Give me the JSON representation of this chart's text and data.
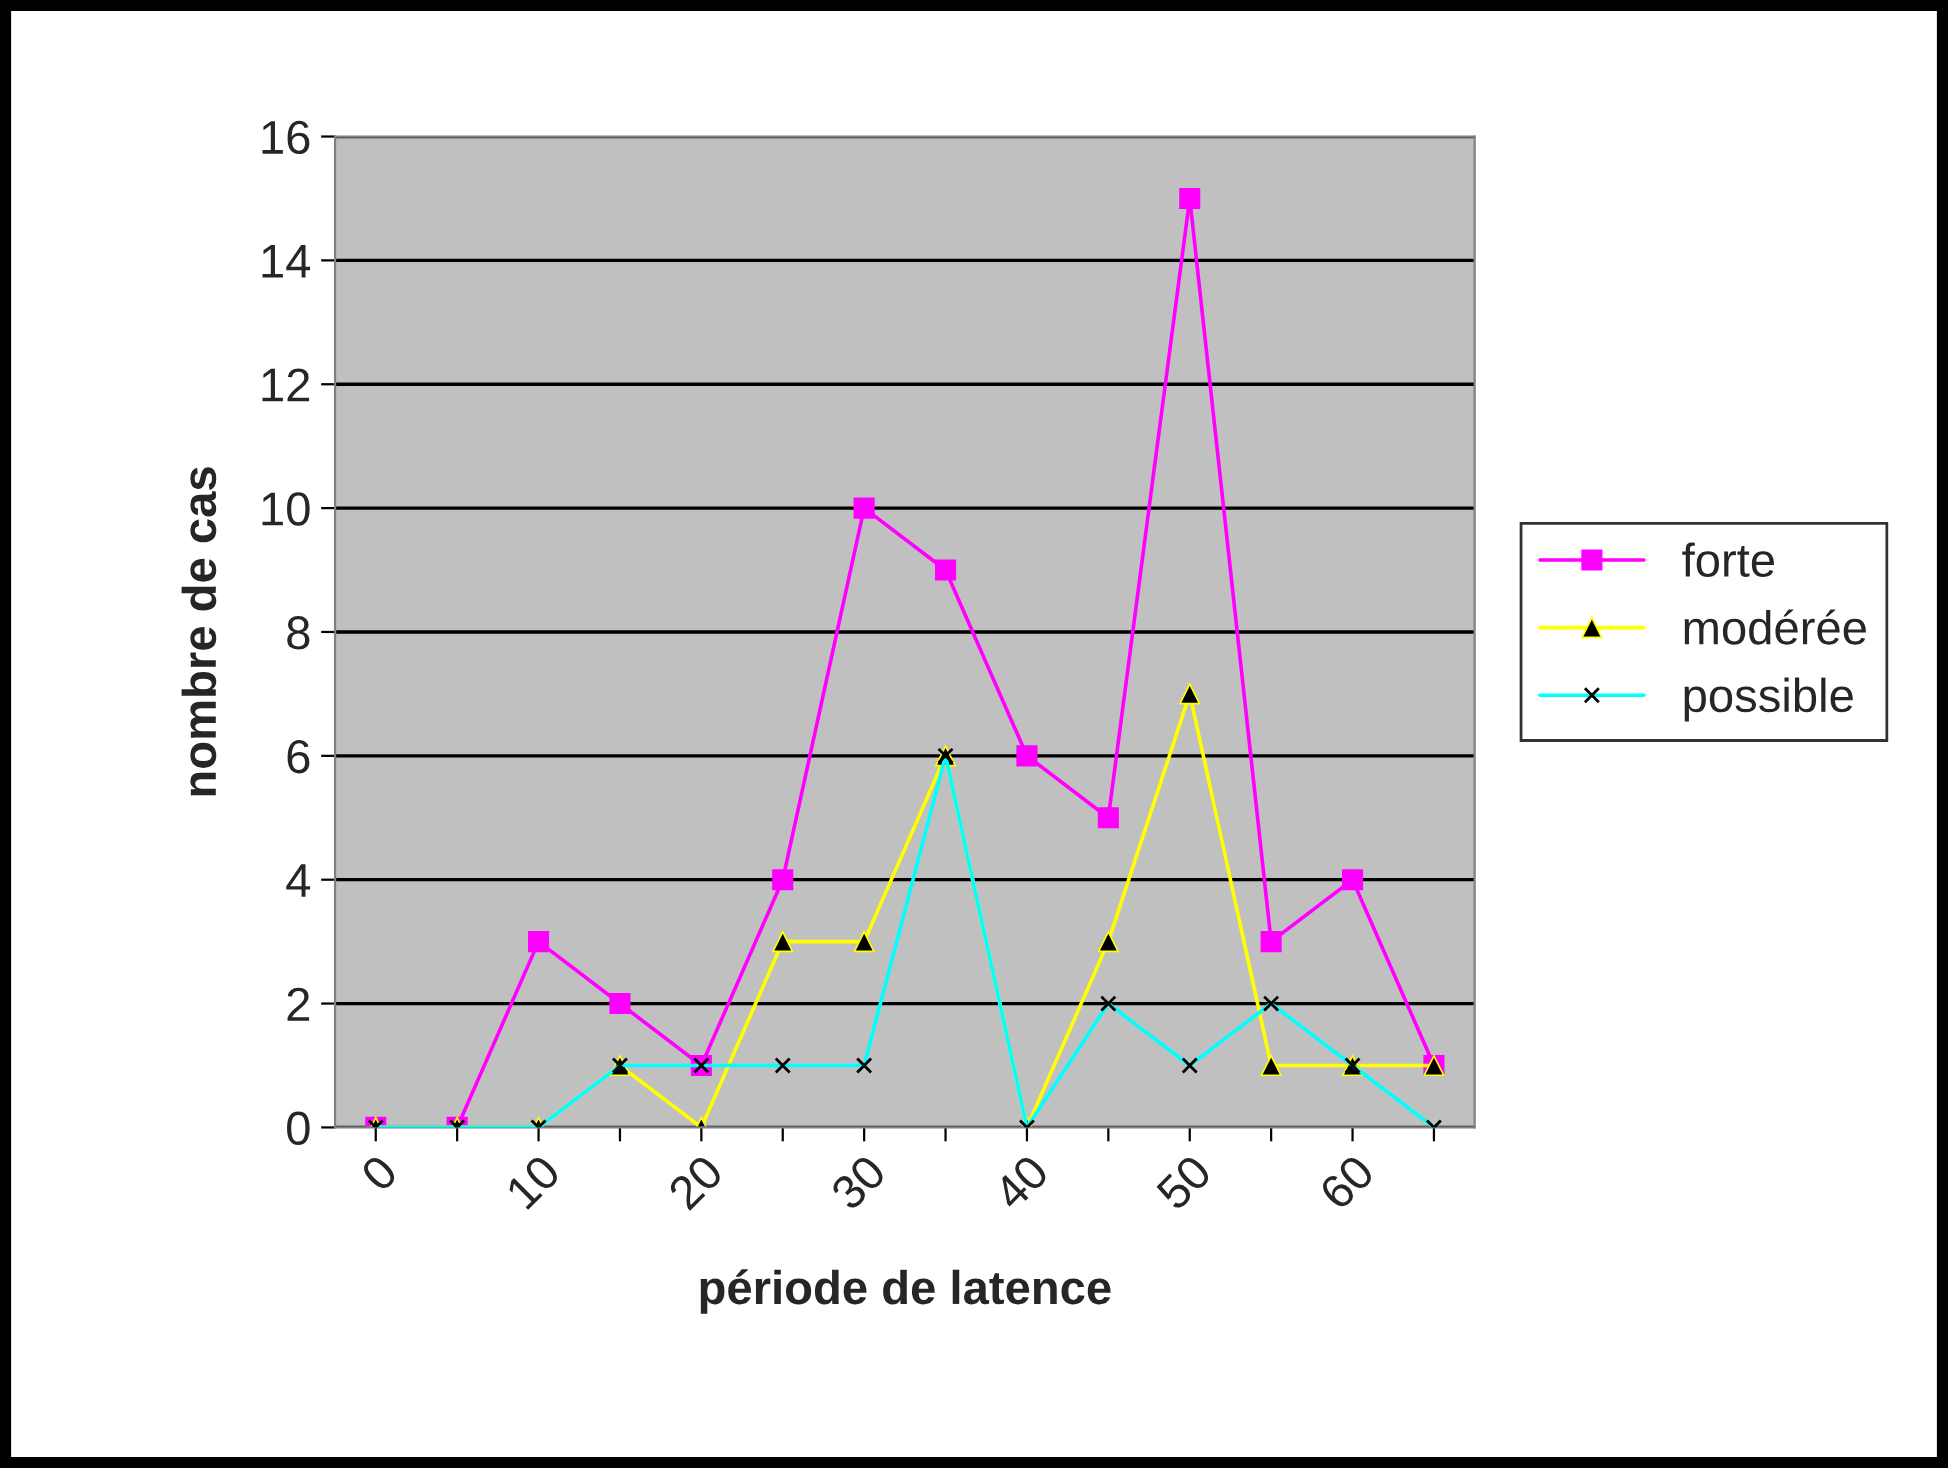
{
  "chart_data": {
    "type": "line",
    "xlabel": "période de latence",
    "ylabel": "nombre de cas",
    "categories": [
      "0",
      null,
      "10",
      null,
      "20",
      null,
      "30",
      null,
      "40",
      null,
      "50",
      null,
      "60",
      null
    ],
    "series": [
      {
        "name": "forte",
        "color": "#ff00ff",
        "marker": "square",
        "values": [
          0,
          0,
          3,
          2,
          1,
          4,
          10,
          9,
          6,
          5,
          15,
          3,
          4,
          1
        ]
      },
      {
        "name": "modérée",
        "color": "#ffff00",
        "marker": "triangle",
        "values": [
          0,
          0,
          0,
          1,
          0,
          3,
          3,
          6,
          0,
          3,
          7,
          1,
          1,
          1
        ]
      },
      {
        "name": "possible",
        "color": "#00ffff",
        "marker": "cross",
        "values": [
          0,
          0,
          0,
          1,
          1,
          1,
          1,
          6,
          0,
          2,
          1,
          2,
          1,
          0
        ]
      }
    ],
    "ylim": [
      0,
      16
    ],
    "yticks": [
      0,
      2,
      4,
      6,
      8,
      10,
      12,
      14,
      16
    ],
    "grid": "y",
    "legend": "right"
  }
}
